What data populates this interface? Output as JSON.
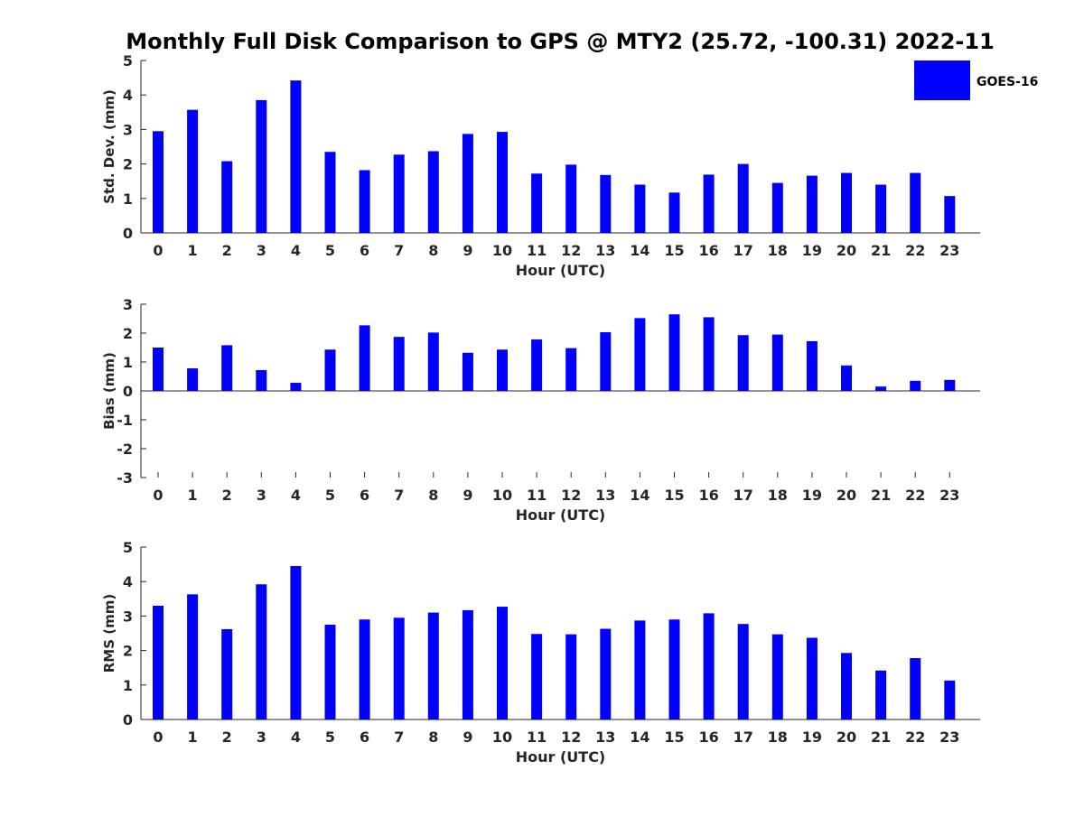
{
  "title": "Monthly Full Disk Comparison to GPS @ MTY2 (25.72, -100.31) 2022-11",
  "legend": {
    "label": "GOES-16",
    "color": "#0000ff",
    "placement": "top-right"
  },
  "chart_data": [
    {
      "type": "bar",
      "name": "stddev",
      "series": [
        {
          "name": "GOES-16",
          "values": [
            2.95,
            3.57,
            2.08,
            3.85,
            4.42,
            2.35,
            1.82,
            2.27,
            2.37,
            2.87,
            2.93,
            1.72,
            1.98,
            1.68,
            1.4,
            1.17,
            1.69,
            2.0,
            1.45,
            1.66,
            1.74,
            1.4,
            1.74,
            1.07
          ]
        }
      ],
      "categories": [
        "0",
        "1",
        "2",
        "3",
        "4",
        "5",
        "6",
        "7",
        "8",
        "9",
        "10",
        "11",
        "12",
        "13",
        "14",
        "15",
        "16",
        "17",
        "18",
        "19",
        "20",
        "21",
        "22",
        "23"
      ],
      "xlabel": "Hour (UTC)",
      "ylabel": "Std. Dev. (mm)",
      "ylim": [
        0,
        5
      ],
      "yticks": [
        "0",
        "1",
        "2",
        "3",
        "4",
        "5"
      ],
      "grid": false
    },
    {
      "type": "bar",
      "name": "bias",
      "series": [
        {
          "name": "GOES-16",
          "values": [
            1.5,
            0.78,
            1.58,
            0.72,
            0.28,
            1.43,
            2.27,
            1.87,
            2.02,
            1.32,
            1.43,
            1.78,
            1.48,
            2.03,
            2.52,
            2.65,
            2.55,
            1.93,
            1.95,
            1.72,
            0.88,
            0.15,
            0.35,
            0.38
          ]
        }
      ],
      "categories": [
        "0",
        "1",
        "2",
        "3",
        "4",
        "5",
        "6",
        "7",
        "8",
        "9",
        "10",
        "11",
        "12",
        "13",
        "14",
        "15",
        "16",
        "17",
        "18",
        "19",
        "20",
        "21",
        "22",
        "23"
      ],
      "xlabel": "Hour (UTC)",
      "ylabel": "Bias (mm)",
      "ylim": [
        -3,
        3
      ],
      "yticks": [
        "-3",
        "-2",
        "-1",
        "0",
        "1",
        "2",
        "3"
      ],
      "grid": false
    },
    {
      "type": "bar",
      "name": "rms",
      "series": [
        {
          "name": "GOES-16",
          "values": [
            3.3,
            3.63,
            2.62,
            3.92,
            4.45,
            2.75,
            2.9,
            2.95,
            3.1,
            3.17,
            3.27,
            2.48,
            2.47,
            2.63,
            2.87,
            2.9,
            3.08,
            2.77,
            2.47,
            2.37,
            1.93,
            1.42,
            1.78,
            1.13
          ]
        }
      ],
      "categories": [
        "0",
        "1",
        "2",
        "3",
        "4",
        "5",
        "6",
        "7",
        "8",
        "9",
        "10",
        "11",
        "12",
        "13",
        "14",
        "15",
        "16",
        "17",
        "18",
        "19",
        "20",
        "21",
        "22",
        "23"
      ],
      "xlabel": "Hour (UTC)",
      "ylabel": "RMS (mm)",
      "ylim": [
        0,
        5
      ],
      "yticks": [
        "0",
        "1",
        "2",
        "3",
        "4",
        "5"
      ],
      "grid": false
    }
  ]
}
